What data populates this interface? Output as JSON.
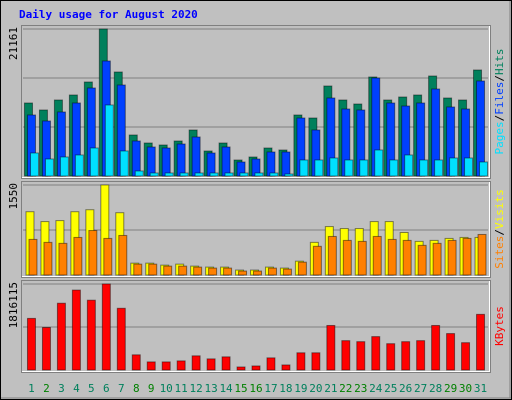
{
  "chart_data": {
    "type": "bar",
    "title": "Daily usage for August 2020",
    "categories": [
      "1",
      "2",
      "3",
      "4",
      "5",
      "6",
      "7",
      "8",
      "9",
      "10",
      "11",
      "12",
      "13",
      "14",
      "15",
      "16",
      "17",
      "18",
      "19",
      "20",
      "21",
      "22",
      "23",
      "24",
      "25",
      "26",
      "27",
      "28",
      "29",
      "30",
      "31"
    ],
    "category_colors": [
      "#00805c",
      "#008000",
      "#00805c",
      "#00805c",
      "#00805c",
      "#00805c",
      "#00805c",
      "#008000",
      "#008000",
      "#00805c",
      "#00805c",
      "#00805c",
      "#00805c",
      "#00805c",
      "#008000",
      "#008000",
      "#00805c",
      "#00805c",
      "#00805c",
      "#00805c",
      "#00805c",
      "#008000",
      "#008000",
      "#00805c",
      "#00805c",
      "#00805c",
      "#00805c",
      "#00805c",
      "#008000",
      "#008000",
      "#00805c"
    ],
    "legend_separator": "/",
    "panels": [
      {
        "ylim": [
          0,
          21161
        ],
        "yticks": [
          21161
        ],
        "grid_divisions": 3,
        "series": [
          {
            "name": "Hits",
            "color": "#00805c",
            "values": [
              10508,
              9501,
              10940,
              11660,
              13531,
              21161,
              14971,
              5902,
              4750,
              4462,
              5038,
              6622,
              3599,
              4750,
              2303,
              2735,
              4031,
              3743,
              8781,
              8349,
              12956,
              10940,
              10364,
              14251,
              10940,
              11372,
              11660,
              14395,
              11228,
              10940,
              15259
            ]
          },
          {
            "name": "Files",
            "color": "#0040ff",
            "values": [
              8781,
              7917,
              9213,
              10508,
              12668,
              16554,
              13099,
              5038,
              4175,
              4031,
              4606,
              5614,
              3311,
              4175,
              2015,
              2447,
              3455,
              3455,
              8349,
              6622,
              11228,
              9645,
              9501,
              14107,
              10508,
              10076,
              10508,
              12524,
              9933,
              9645,
              13675
            ]
          },
          {
            "name": "Pages",
            "color": "#00e0ff",
            "values": [
              3311,
              2447,
              2735,
              3023,
              4031,
              10220,
              3599,
              720,
              432,
              432,
              432,
              432,
              432,
              432,
              432,
              432,
              432,
              288,
              2303,
              2303,
              2591,
              2303,
              2303,
              3743,
              2303,
              3023,
              2303,
              2303,
              2591,
              2591,
              2015
            ]
          }
        ]
      },
      {
        "ylim": [
          0,
          1550
        ],
        "yticks": [
          1550
        ],
        "grid_divisions": 2,
        "series": [
          {
            "name": "Visits",
            "color": "#ffff00",
            "values": [
              1090,
              920,
              937,
              1090,
              1124,
              1550,
              1073,
              204,
              204,
              170,
              187,
              153,
              136,
              136,
              85,
              85,
              136,
              119,
              238,
              562,
              834,
              800,
              800,
              920,
              920,
              732,
              579,
              596,
              630,
              647,
              647
            ]
          },
          {
            "name": "Sites",
            "color": "#ff8000",
            "values": [
              613,
              562,
              545,
              647,
              766,
              630,
              681,
              187,
              187,
              153,
              153,
              136,
              119,
              119,
              68,
              68,
              119,
              102,
              221,
              494,
              664,
              596,
              579,
              664,
              613,
              596,
              511,
              545,
              596,
              630,
              698
            ]
          }
        ]
      },
      {
        "ylim": [
          0,
          1816115
        ],
        "yticks": [
          1816115
        ],
        "grid_divisions": 2,
        "series": [
          {
            "name": "KBytes",
            "color": "#ff0000",
            "values": [
              1089666,
              897372,
              1410156,
              1687914,
              1474254,
              1816115,
              1303326,
              320490,
              170928,
              170928,
              192294,
              299124,
              235026,
              277758,
              64098,
              85464,
              256392,
              106830,
              363222,
              363222,
              940104,
              619614,
              598248,
              705078,
              555516,
              598248,
              619614,
              940104,
              769176,
              576882,
              1175130
            ]
          }
        ]
      }
    ]
  }
}
